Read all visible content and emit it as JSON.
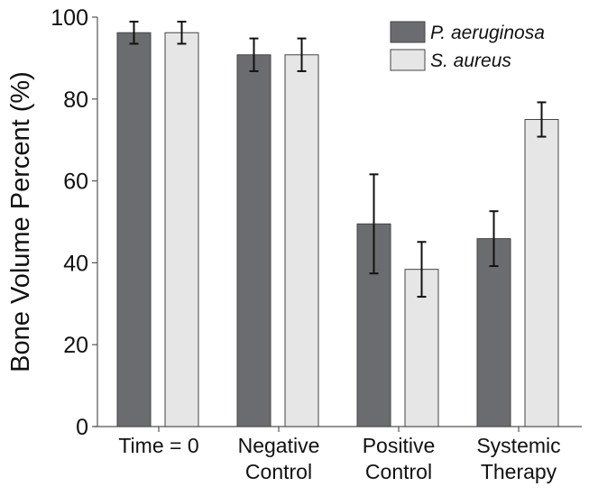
{
  "chart_data": {
    "type": "bar",
    "title": "",
    "xlabel": "",
    "ylabel": "Bone Volume Percent (%)",
    "ylim": [
      0,
      100
    ],
    "yticks": [
      0,
      20,
      40,
      60,
      80,
      100
    ],
    "grid": false,
    "legend_placement": "top-right",
    "categories": [
      [
        "Time = 0"
      ],
      [
        "Negative",
        "Control"
      ],
      [
        "Positive",
        "Control"
      ],
      [
        "Systemic",
        "Therapy"
      ]
    ],
    "series": [
      {
        "name": "P. aeruginosa",
        "color": "#6b6c70",
        "values": [
          96.2,
          90.8,
          49.5,
          45.9
        ],
        "errors": [
          2.7,
          4.0,
          12.1,
          6.7
        ]
      },
      {
        "name": "S. aureus",
        "color": "#e6e6e6",
        "values": [
          96.2,
          90.8,
          38.4,
          75.0
        ],
        "errors": [
          2.7,
          4.0,
          6.7,
          4.2
        ]
      }
    ]
  }
}
